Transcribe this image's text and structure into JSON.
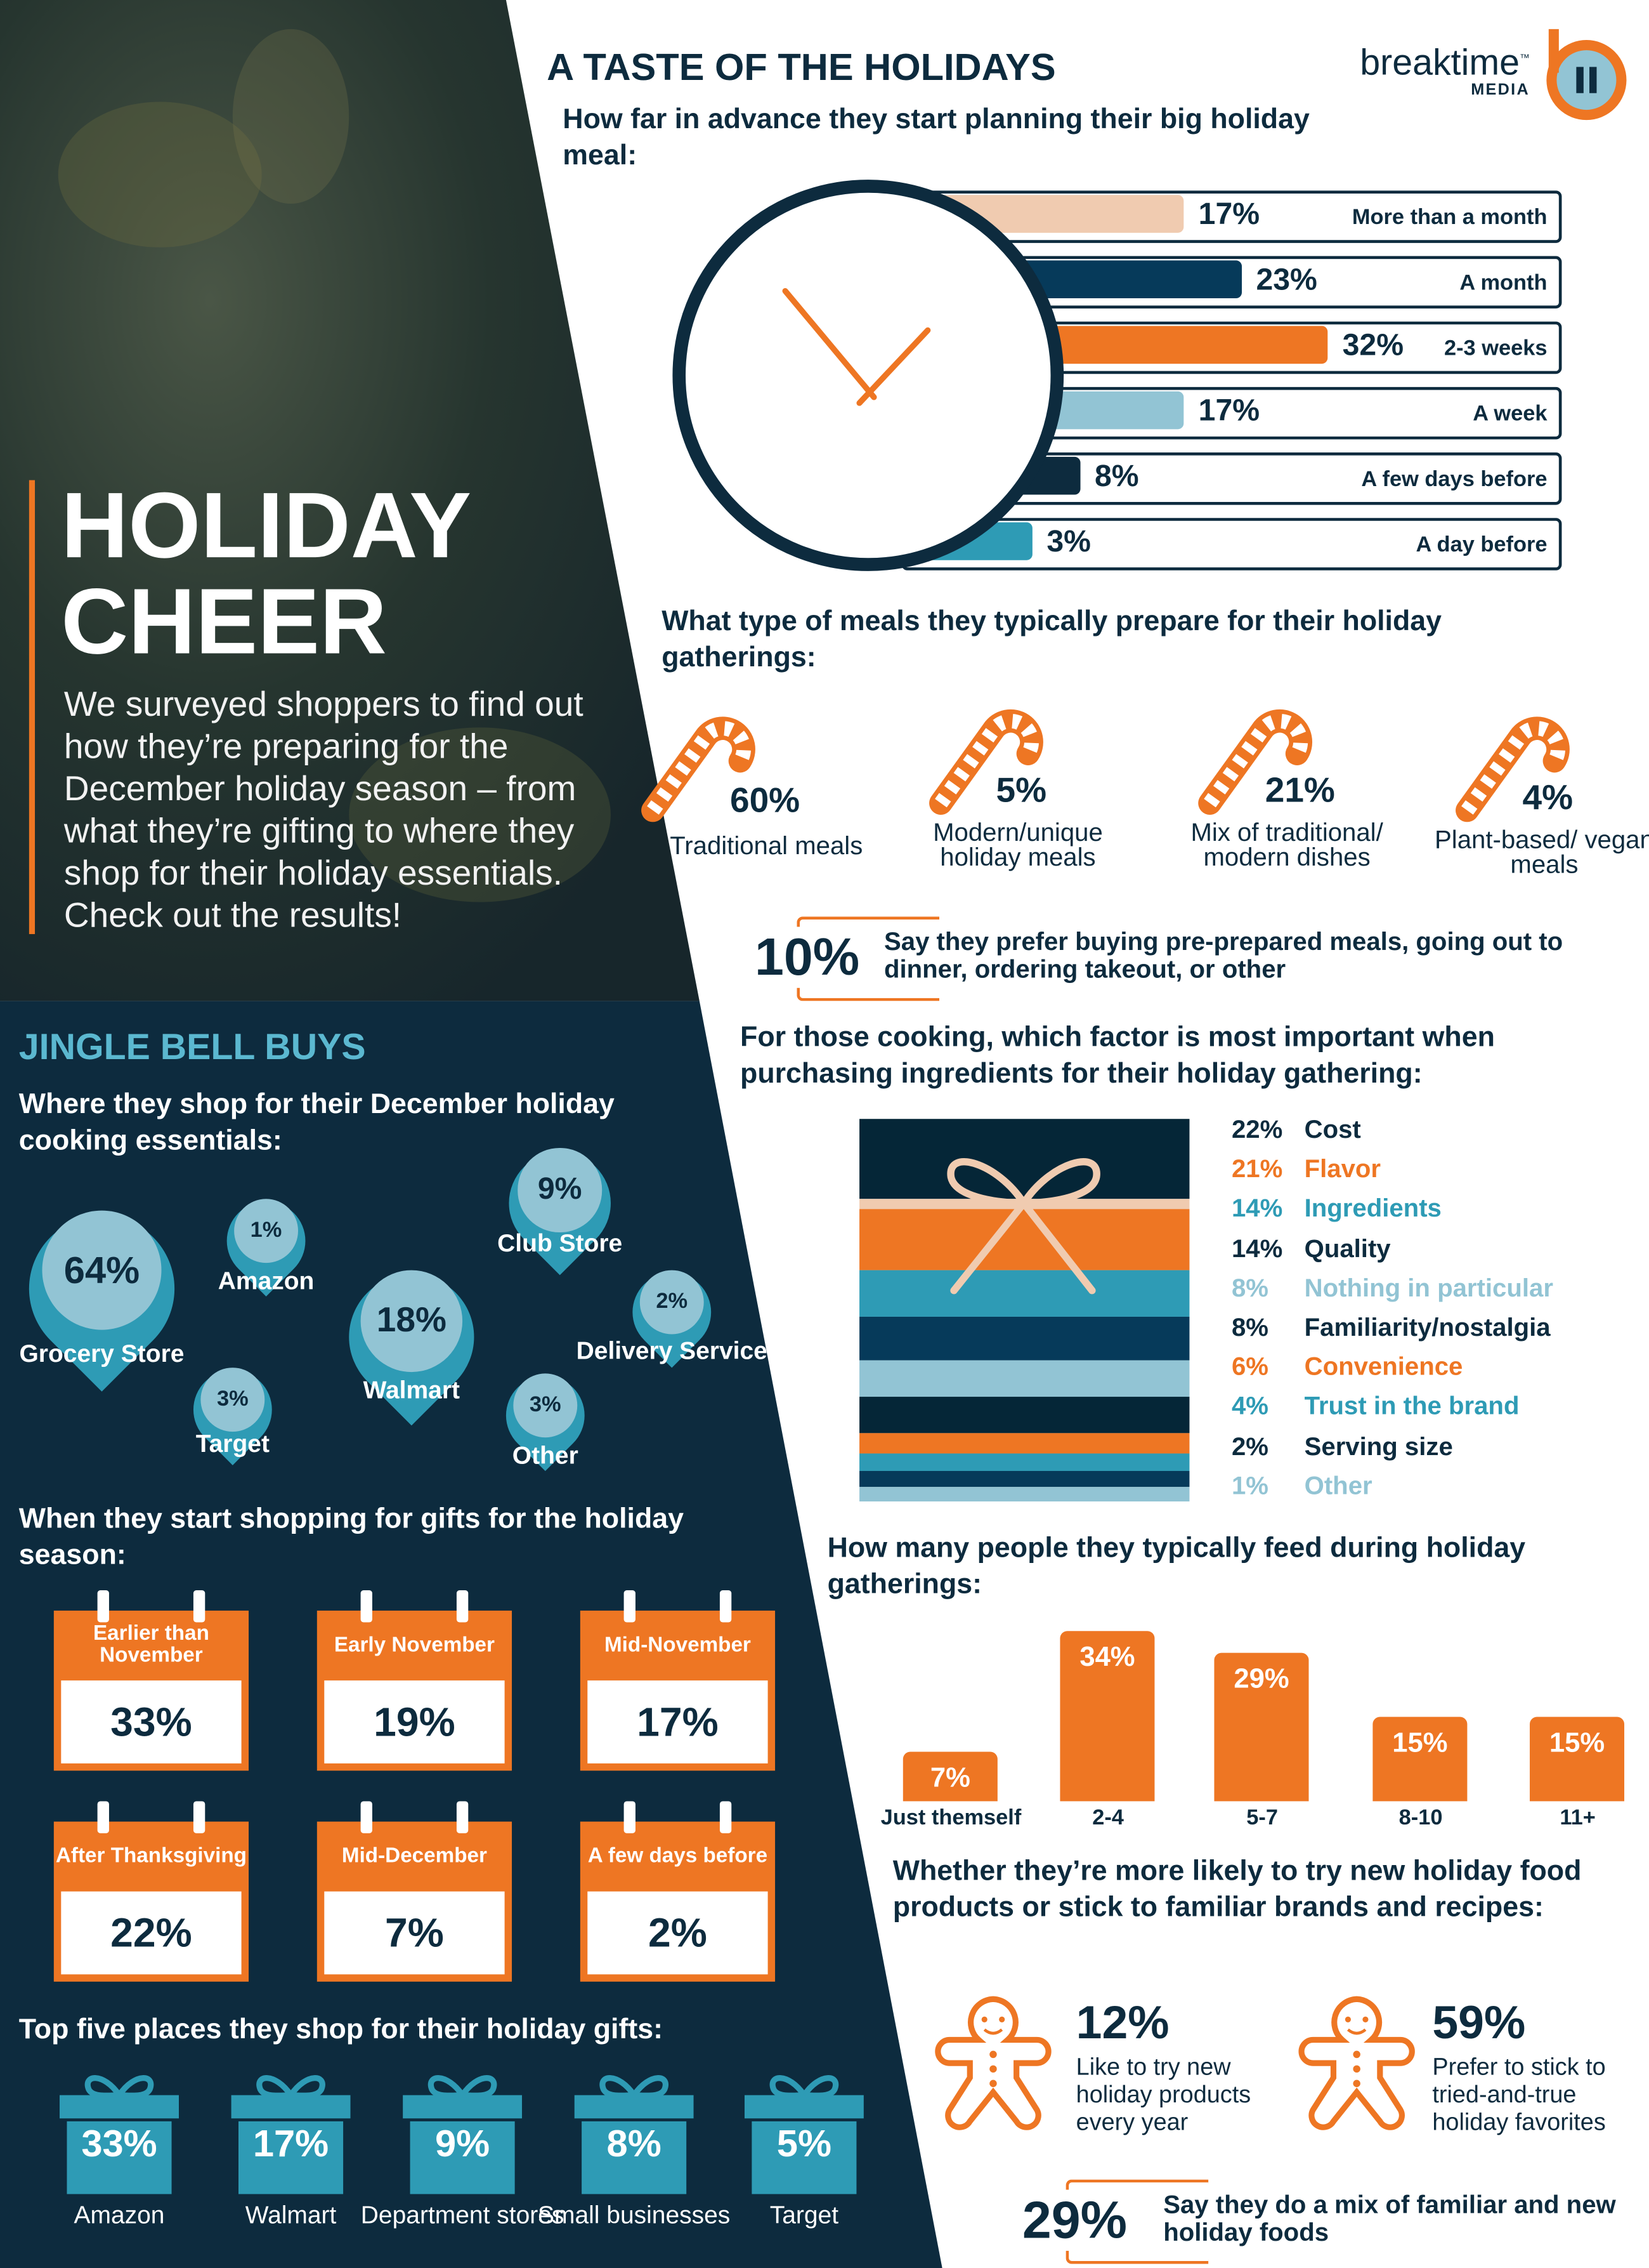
{
  "colors": {
    "navy": "#0d2b3e",
    "dark_navy": "#063a5a",
    "orange": "#ee7623",
    "teal": "#2e9bb5",
    "light_blue": "#92c4d4",
    "peach": "#f0cbb0",
    "jingle_title": "#5bb8d0"
  },
  "hero": {
    "title_line1": "HOLIDAY",
    "title_line2": "CHEER",
    "intro": "We surveyed shoppers to find out how they’re preparing for the December holiday season – from what they’re gifting to where they shop for their holiday essentials. Check out the results!"
  },
  "brand": {
    "name": "breaktime",
    "tm": "™",
    "sub": "MEDIA",
    "logo_icon": "pause-icon"
  },
  "taste": {
    "title": "A TASTE OF THE HOLIDAYS",
    "planning": {
      "question": "How far in advance they start planning their big holiday meal:",
      "icon": "clock-icon",
      "items": [
        {
          "label": "More than a month",
          "value": 17,
          "text": "17%",
          "color": "#f0cbb0"
        },
        {
          "label": "A month",
          "value": 23,
          "text": "23%",
          "color": "#063a5a"
        },
        {
          "label": "2-3 weeks",
          "value": 32,
          "text": "32%",
          "color": "#ee7623"
        },
        {
          "label": "A week",
          "value": 17,
          "text": "17%",
          "color": "#92c4d4"
        },
        {
          "label": "A few days before",
          "value": 8,
          "text": "8%",
          "color": "#0d2b3e"
        },
        {
          "label": "A day before",
          "value": 3,
          "text": "3%",
          "color": "#2e9bb5"
        }
      ]
    },
    "meals": {
      "question": "What type of meals they typically prepare for their holiday gatherings:",
      "icon": "candy-cane-icon",
      "items": [
        {
          "value": "60%",
          "label": "Traditional meals"
        },
        {
          "value": "5%",
          "label": "Modern/unique holiday meals"
        },
        {
          "value": "21%",
          "label": "Mix of traditional/ modern dishes"
        },
        {
          "value": "4%",
          "label": "Plant-based/ vegan meals"
        }
      ],
      "callout_value": "10%",
      "callout_text": "Say they prefer buying pre-prepared meals, going out to dinner, ordering takeout, or other"
    },
    "factors": {
      "question": "For those cooking, which factor is most important when purchasing ingredients for their holiday gathering:",
      "icon": "gift-box-icon",
      "items": [
        {
          "value": "22%",
          "label": "Cost",
          "color": "#0d2b3e"
        },
        {
          "value": "21%",
          "label": "Flavor",
          "color": "#ee7623"
        },
        {
          "value": "14%",
          "label": "Ingredients",
          "color": "#2e9bb5"
        },
        {
          "value": "14%",
          "label": "Quality",
          "color": "#0d2b3e"
        },
        {
          "value": "8%",
          "label": "Nothing in particular",
          "color": "#92c4d4"
        },
        {
          "value": "8%",
          "label": "Familiarity/nostalgia",
          "color": "#0d2b3e"
        },
        {
          "value": "6%",
          "label": "Convenience",
          "color": "#ee7623"
        },
        {
          "value": "4%",
          "label": "Trust in the brand",
          "color": "#2e9bb5"
        },
        {
          "value": "2%",
          "label": "Serving size",
          "color": "#0d2b3e"
        },
        {
          "value": "1%",
          "label": "Other",
          "color": "#92c4d4"
        }
      ]
    },
    "feed": {
      "question": "How many people they typically feed during holiday gatherings:"
    },
    "try_new": {
      "question": "Whether they’re more likely to try new holiday food products or stick to familiar brands and recipes:",
      "icon": "gingerbread-man-icon",
      "left_value": "12%",
      "left_text": "Like to try new holiday products every year",
      "right_value": "59%",
      "right_text": "Prefer to stick to tried-and-true holiday favorites",
      "callout_value": "29%",
      "callout_text": "Say they do a mix of familiar and new holiday foods"
    }
  },
  "chart_data": {
    "type": "bar",
    "categories": [
      "Just themself",
      "2-4",
      "5-7",
      "8-10",
      "11+"
    ],
    "values": [
      7,
      34,
      29,
      15,
      15
    ],
    "labels": [
      "7%",
      "34%",
      "29%",
      "15%",
      "15%"
    ]
  },
  "jingle": {
    "title": "JINGLE BELL BUYS",
    "where": {
      "question": "Where they shop for their December holiday cooking essentials:",
      "icon": "location-pin-icon",
      "items": [
        {
          "value": "64%",
          "label": "Grocery Store"
        },
        {
          "value": "1%",
          "label": "Amazon"
        },
        {
          "value": "18%",
          "label": "Walmart"
        },
        {
          "value": "9%",
          "label": "Club Store"
        },
        {
          "value": "2%",
          "label": "Delivery Service"
        },
        {
          "value": "3%",
          "label": "Target"
        },
        {
          "value": "3%",
          "label": "Other"
        }
      ]
    },
    "when": {
      "question": "When they start shopping for gifts for the holiday season:",
      "icon": "calendar-icon",
      "items": [
        {
          "label": "Earlier than November",
          "value": "33%"
        },
        {
          "label": "Early November",
          "value": "19%"
        },
        {
          "label": "Mid-November",
          "value": "17%"
        },
        {
          "label": "After Thanksgiving",
          "value": "22%"
        },
        {
          "label": "Mid-December",
          "value": "7%"
        },
        {
          "label": "A few days before",
          "value": "2%"
        }
      ]
    },
    "top_places": {
      "question": "Top five places they shop for their holiday gifts:",
      "icon": "gift-icon",
      "items": [
        {
          "value": "33%",
          "label": "Amazon"
        },
        {
          "value": "17%",
          "label": "Walmart"
        },
        {
          "value": "9%",
          "label": "Department stores"
        },
        {
          "value": "8%",
          "label": "Small businesses"
        },
        {
          "value": "5%",
          "label": "Target"
        }
      ]
    }
  }
}
